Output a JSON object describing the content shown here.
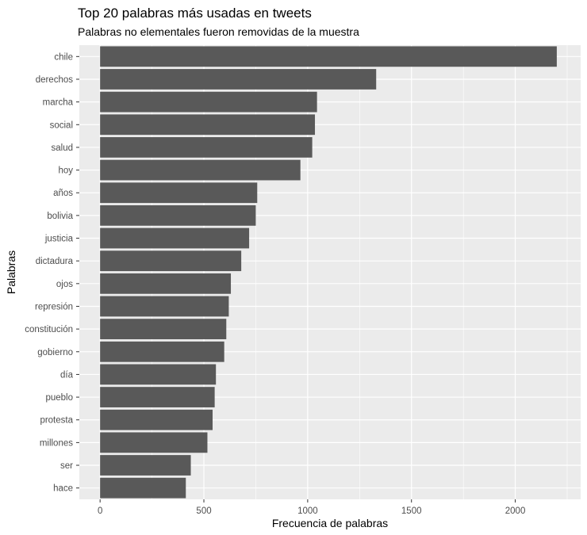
{
  "chart_data": {
    "type": "bar",
    "orientation": "horizontal",
    "title": "Top 20 palabras más usadas en tweets",
    "subtitle": "Palabras no elementales fueron removidas de la muestra",
    "xlabel": "Frecuencia de palabras",
    "ylabel": "Palabras",
    "xlim": [
      -100,
      2315
    ],
    "x_ticks": [
      0,
      500,
      1000,
      1500,
      2000
    ],
    "categories": [
      "chile",
      "derechos",
      "marcha",
      "social",
      "salud",
      "hoy",
      "años",
      "bolivia",
      "justicia",
      "dictadura",
      "ojos",
      "represión",
      "constitución",
      "gobierno",
      "día",
      "pueblo",
      "protesta",
      "millones",
      "ser",
      "hace"
    ],
    "values": [
      2200,
      1330,
      1045,
      1035,
      1022,
      965,
      757,
      750,
      718,
      680,
      630,
      620,
      608,
      598,
      558,
      552,
      542,
      517,
      437,
      413
    ],
    "grid": true,
    "panel_background": "#ebebeb",
    "bar_color": "#595959",
    "grid_color": "#ffffff"
  }
}
